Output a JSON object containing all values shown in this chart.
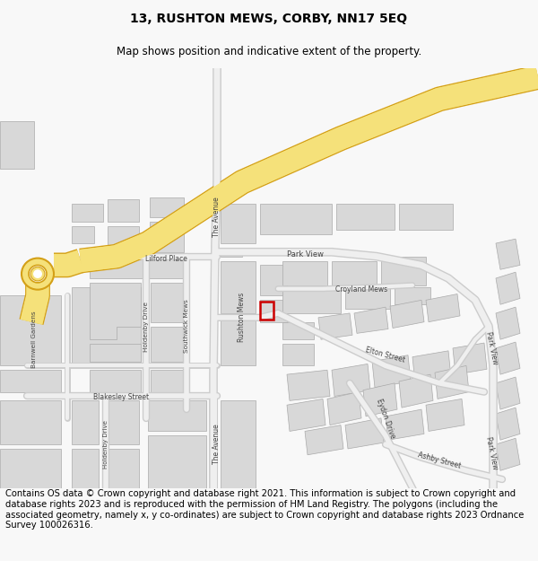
{
  "title": "13, RUSHTON MEWS, CORBY, NN17 5EQ",
  "subtitle": "Map shows position and indicative extent of the property.",
  "footer": "Contains OS data © Crown copyright and database right 2021. This information is subject to Crown copyright and database rights 2023 and is reproduced with the permission of HM Land Registry. The polygons (including the associated geometry, namely x, y co-ordinates) are subject to Crown copyright and database rights 2023 Ordnance Survey 100026316.",
  "title_fontsize": 10,
  "subtitle_fontsize": 8.5,
  "footer_fontsize": 7.2,
  "bg_color": "#f8f8f8",
  "map_bg": "#ffffff",
  "road_color": "#d8d8d8",
  "road_edge_color": "#bbbbbb",
  "building_color": "#d8d8d8",
  "building_edge_color": "#aaaaaa",
  "yellow_road_fill": "#f5e17a",
  "yellow_road_edge": "#d4a017",
  "highlight_color": "#cc0000",
  "street_label_color": "#444444",
  "street_label_size": 5.8
}
